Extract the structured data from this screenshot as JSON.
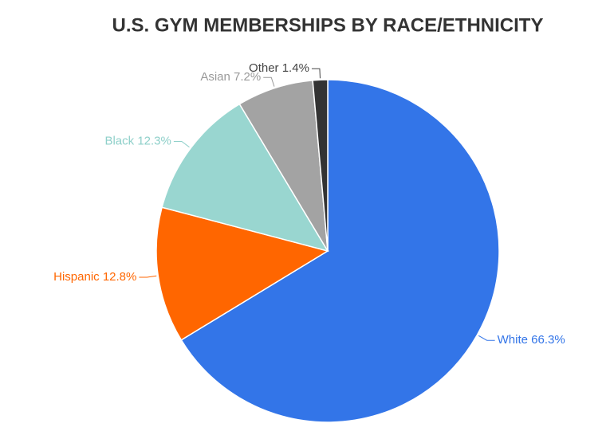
{
  "chart_data": {
    "type": "pie",
    "title": "U.S. GYM MEMBERSHIPS BY RACE/ETHNICITY",
    "categories": [
      "White",
      "Hispanic",
      "Black",
      "Asian",
      "Other"
    ],
    "values": [
      66.3,
      12.8,
      12.3,
      7.2,
      1.4
    ],
    "value_labels": [
      "66.3%",
      "12.8%",
      "12.3%",
      "7.2%",
      "1.4%"
    ],
    "colors": [
      "#3375e8",
      "#ff6600",
      "#99d6d0",
      "#a3a3a3",
      "#333333"
    ],
    "label_colors": [
      "#3375e8",
      "#ff6600",
      "#8fd0ca",
      "#999999",
      "#444444"
    ]
  }
}
